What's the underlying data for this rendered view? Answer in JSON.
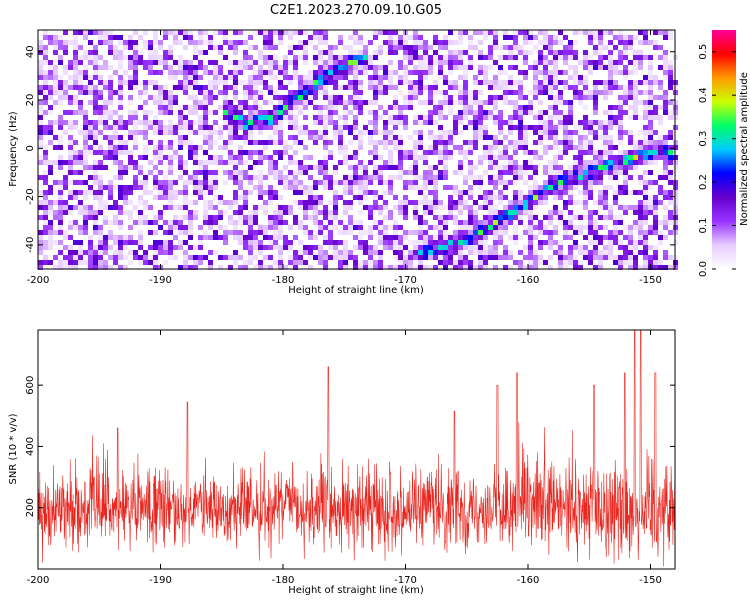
{
  "title": "C2E1.2023.270.09.10.G05",
  "chart_data": [
    {
      "type": "heatmap",
      "xlabel": "Height of straight line (km)",
      "ylabel": "Frequency (Hz)",
      "xlim": [
        -200,
        -148
      ],
      "ylim": [
        -50,
        49
      ],
      "xticks": [
        -200,
        -190,
        -180,
        -170,
        -160,
        -150
      ],
      "yticks": [
        -40,
        -20,
        0,
        20,
        40
      ],
      "colorbar": {
        "label": "Normalized spectral amplitude",
        "range": [
          0,
          0.55
        ],
        "ticks": [
          0.0,
          0.1,
          0.2,
          0.3,
          0.4,
          0.5
        ],
        "colormap": [
          "#ffffff",
          "#e6ccff",
          "#9933ff",
          "#6600cc",
          "#0000ff",
          "#00ccff",
          "#00ff66",
          "#ccff00",
          "#ff9900",
          "#ff0000",
          "#ff0099"
        ]
      },
      "ridges": [
        {
          "x": [
            -185,
            -183,
            -181,
            -179,
            -177,
            -175,
            -173
          ],
          "y": [
            16,
            10,
            12,
            20,
            28,
            34,
            38
          ]
        },
        {
          "x": [
            -169,
            -165,
            -161,
            -158,
            -155,
            -152,
            -149,
            -148
          ],
          "y": [
            -44,
            -38,
            -26,
            -15,
            -10,
            -5,
            0,
            -4
          ]
        }
      ]
    },
    {
      "type": "line",
      "xlabel": "Height of straight line (km)",
      "ylabel": "SNR (10 * v/v)",
      "xlim": [
        -200,
        -148
      ],
      "ylim": [
        0,
        780
      ],
      "xticks": [
        -200,
        -190,
        -180,
        -170,
        -160,
        -150
      ],
      "yticks": [
        200,
        400,
        600
      ],
      "color": "#e8261f",
      "baseline": 195,
      "noise_band": [
        90,
        320
      ],
      "peaks": [
        {
          "x": -193.5,
          "y": 460
        },
        {
          "x": -187.8,
          "y": 545
        },
        {
          "x": -176.3,
          "y": 660
        },
        {
          "x": -166.0,
          "y": 515
        },
        {
          "x": -162.5,
          "y": 600
        },
        {
          "x": -160.9,
          "y": 640
        },
        {
          "x": -154.6,
          "y": 600
        },
        {
          "x": -152.1,
          "y": 640
        },
        {
          "x": -151.3,
          "y": 780
        },
        {
          "x": -150.8,
          "y": 780
        },
        {
          "x": -149.6,
          "y": 640
        }
      ]
    }
  ]
}
